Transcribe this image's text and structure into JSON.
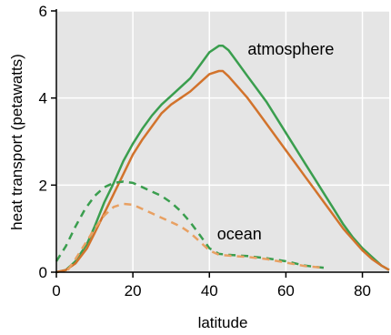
{
  "chart_data": {
    "type": "line",
    "xlabel": "latitude",
    "ylabel": "heat transport (petawatts)",
    "xlim": [
      0,
      87
    ],
    "ylim": [
      0,
      6
    ],
    "xticks": [
      0,
      20,
      40,
      60,
      80
    ],
    "yticks": [
      0,
      2,
      4,
      6
    ],
    "grid": true,
    "background": "#e5e5e5",
    "annotations": [
      {
        "text": "atmosphere",
        "x": 50,
        "y": 5.0
      },
      {
        "text": "ocean",
        "x": 42,
        "y": 0.75
      }
    ],
    "series": [
      {
        "group": "atmosphere",
        "style": "solid",
        "color": "#3a9e4e",
        "x": [
          0,
          2.5,
          5,
          8,
          10,
          12.5,
          15,
          17.5,
          20,
          22.5,
          25,
          27.5,
          30,
          32.5,
          35,
          37.5,
          40,
          42.5,
          43.5,
          45,
          47.5,
          50,
          52.5,
          55,
          57.5,
          60,
          62.5,
          65,
          67.5,
          70,
          72.5,
          75,
          77.5,
          80,
          82.5,
          85,
          87
        ],
        "y": [
          0,
          0.05,
          0.25,
          0.65,
          1.05,
          1.6,
          2.05,
          2.55,
          2.95,
          3.3,
          3.6,
          3.85,
          4.05,
          4.25,
          4.45,
          4.75,
          5.05,
          5.2,
          5.2,
          5.1,
          4.8,
          4.5,
          4.2,
          3.9,
          3.55,
          3.2,
          2.85,
          2.5,
          2.15,
          1.8,
          1.45,
          1.1,
          0.8,
          0.55,
          0.35,
          0.15,
          0.05
        ]
      },
      {
        "group": "atmosphere",
        "style": "solid",
        "color": "#d2732c",
        "x": [
          0,
          2.5,
          5,
          8,
          10,
          12.5,
          15,
          17.5,
          20,
          22.5,
          25,
          27.5,
          30,
          32.5,
          35,
          37.5,
          40,
          42.5,
          43.5,
          45,
          47.5,
          50,
          52.5,
          55,
          57.5,
          60,
          62.5,
          65,
          67.5,
          70,
          72.5,
          75,
          77.5,
          80,
          82.5,
          85,
          87
        ],
        "y": [
          0,
          0.05,
          0.2,
          0.55,
          0.9,
          1.35,
          1.8,
          2.25,
          2.7,
          3.05,
          3.35,
          3.65,
          3.85,
          4.0,
          4.15,
          4.35,
          4.55,
          4.62,
          4.62,
          4.5,
          4.25,
          4.0,
          3.7,
          3.4,
          3.1,
          2.8,
          2.5,
          2.2,
          1.9,
          1.6,
          1.3,
          1.0,
          0.75,
          0.5,
          0.3,
          0.15,
          0.05
        ]
      },
      {
        "group": "ocean",
        "style": "dashed",
        "color": "#3a9e4e",
        "x": [
          0,
          2.5,
          5,
          7.5,
          10,
          12.5,
          15,
          17.5,
          20,
          22.5,
          25,
          27.5,
          30,
          32.5,
          35,
          37.5,
          40,
          42.5,
          45,
          50,
          55,
          60,
          65,
          70
        ],
        "y": [
          0.25,
          0.6,
          1.05,
          1.45,
          1.75,
          1.95,
          2.05,
          2.08,
          2.05,
          1.95,
          1.85,
          1.75,
          1.6,
          1.4,
          1.15,
          0.85,
          0.55,
          0.42,
          0.4,
          0.37,
          0.32,
          0.25,
          0.15,
          0.1
        ]
      },
      {
        "group": "ocean",
        "style": "dashed",
        "color": "#e8a062",
        "x": [
          3,
          5,
          7.5,
          10,
          12.5,
          15,
          17.5,
          20,
          22.5,
          25,
          27.5,
          30,
          32.5,
          35,
          37.5,
          40,
          42.5,
          45,
          50,
          55,
          60,
          65,
          70
        ],
        "y": [
          0.05,
          0.3,
          0.65,
          1.0,
          1.3,
          1.5,
          1.57,
          1.55,
          1.45,
          1.35,
          1.25,
          1.15,
          1.05,
          0.9,
          0.7,
          0.5,
          0.4,
          0.38,
          0.35,
          0.3,
          0.22,
          0.14,
          0.1
        ]
      }
    ]
  }
}
